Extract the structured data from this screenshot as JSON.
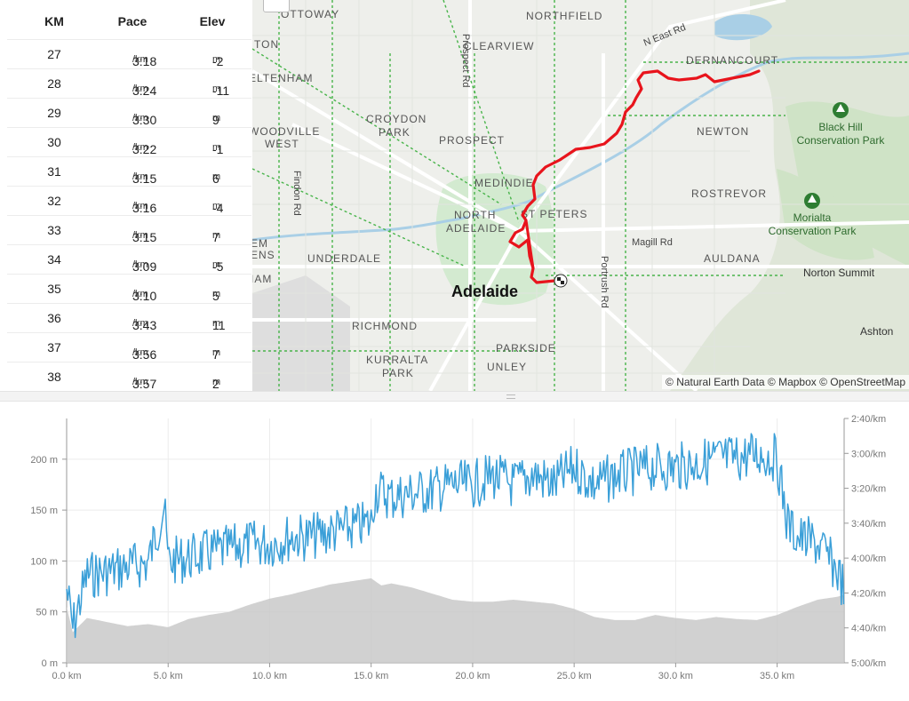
{
  "splits": {
    "headers": {
      "km": "KM",
      "pace": "Pace",
      "elev": "Elev"
    },
    "pace_unit": "/km",
    "elev_unit": "m",
    "rows": [
      {
        "km": "27",
        "pace": "3:18",
        "elev": "-2"
      },
      {
        "km": "28",
        "pace": "3:24",
        "elev": "-11"
      },
      {
        "km": "29",
        "pace": "3:30",
        "elev": "9"
      },
      {
        "km": "30",
        "pace": "3:22",
        "elev": "-1"
      },
      {
        "km": "31",
        "pace": "3:15",
        "elev": "6"
      },
      {
        "km": "32",
        "pace": "3:16",
        "elev": "-4"
      },
      {
        "km": "33",
        "pace": "3:15",
        "elev": "7"
      },
      {
        "km": "34",
        "pace": "3:09",
        "elev": "-5"
      },
      {
        "km": "35",
        "pace": "3:10",
        "elev": "5"
      },
      {
        "km": "36",
        "pace": "3:43",
        "elev": "11"
      },
      {
        "km": "37",
        "pace": "3:56",
        "elev": "7"
      },
      {
        "km": "38",
        "pace": "3:57",
        "elev": "2"
      }
    ]
  },
  "map": {
    "zoom_out": "−",
    "attribution": "© Natural Earth Data © Mapbox © OpenStreetMap",
    "city": "Adelaide",
    "suburbs": [
      "OTTOWAY",
      "NORTHFIELD",
      "CLEARVIEW",
      "DERNANCOURT",
      "ELTENHAM",
      "CROYDON",
      "PARK",
      "WOODVILLE",
      "WEST",
      "PROSPECT",
      "NEWTON",
      "MEDINDIE",
      "ROSTREVOR",
      "NORTH",
      "ADELAIDE",
      "ST PETERS",
      "UNDERDALE",
      "AULDANA",
      "RICHMOND",
      "PARKSIDE",
      "KURRALTA",
      "PARK",
      "UNLEY",
      "TON",
      "EM",
      "ENS",
      "IAM"
    ],
    "roads": [
      "Prospect Rd",
      "N East Rd",
      "Findon Rd",
      "Magill Rd",
      "Portrush Rd"
    ],
    "parks": [
      "Black Hill",
      "Conservation Park",
      "Morialta",
      "Conservation Park"
    ],
    "places": [
      "Norton Summit",
      "Ashton"
    ],
    "colors": {
      "route": "#e8141c",
      "water": "#a9cfe6",
      "green": "#c8e6c0"
    }
  },
  "chart_data": {
    "type": "line",
    "title": "",
    "xlabel": "",
    "x_ticks": [
      "0.0 km",
      "5.0 km",
      "10.0 km",
      "15.0 km",
      "20.0 km",
      "25.0 km",
      "30.0 km",
      "35.0 km"
    ],
    "xlim": [
      0,
      38.3
    ],
    "elevation": {
      "name": "Elevation",
      "unit": "m",
      "y_ticks": [
        "0 m",
        "50 m",
        "100 m",
        "150 m",
        "200 m"
      ],
      "ylim": [
        0,
        240
      ],
      "color": "#c9c9c9",
      "x": [
        0,
        0.3,
        1,
        2,
        3,
        4,
        5,
        6,
        7,
        8,
        9,
        10,
        11,
        12,
        13,
        14,
        15,
        15.5,
        16,
        17,
        18,
        19,
        20,
        21,
        22,
        23,
        24,
        25,
        26,
        27,
        28,
        29,
        30,
        31,
        32,
        33,
        34,
        35,
        36,
        37,
        38,
        38.3
      ],
      "values": [
        55,
        30,
        44,
        40,
        36,
        38,
        35,
        43,
        47,
        50,
        57,
        63,
        67,
        72,
        77,
        80,
        83,
        76,
        78,
        74,
        68,
        62,
        60,
        60,
        62,
        60,
        58,
        53,
        45,
        42,
        42,
        47,
        44,
        42,
        45,
        43,
        42,
        47,
        55,
        62,
        65,
        67
      ]
    },
    "pace": {
      "name": "Pace",
      "unit": "/km",
      "y_ticks": [
        "2:40/km",
        "3:00/km",
        "3:20/km",
        "3:40/km",
        "4:00/km",
        "4:20/km",
        "4:40/km",
        "5:00/km"
      ],
      "ylim_sec_per_km": [
        160,
        300
      ],
      "color": "#3a9fd8",
      "x": [
        0,
        0.3,
        1,
        2,
        3,
        4,
        4.8,
        5,
        6,
        7,
        8,
        9,
        10,
        11,
        12,
        13,
        14,
        15,
        15.2,
        16,
        17,
        18,
        19,
        20,
        21,
        22,
        23,
        24,
        25,
        26,
        27,
        28,
        29,
        30,
        31,
        32,
        33,
        34,
        35,
        35.5,
        36,
        37,
        38,
        38.3
      ],
      "values": [
        258,
        280,
        250,
        248,
        245,
        243,
        210,
        242,
        240,
        237,
        235,
        232,
        232,
        228,
        228,
        225,
        223,
        220,
        201,
        205,
        203,
        201,
        198,
        198,
        193,
        198,
        192,
        198,
        188,
        198,
        193,
        190,
        188,
        188,
        186,
        183,
        183,
        180,
        183,
        220,
        228,
        232,
        248,
        258
      ]
    }
  }
}
